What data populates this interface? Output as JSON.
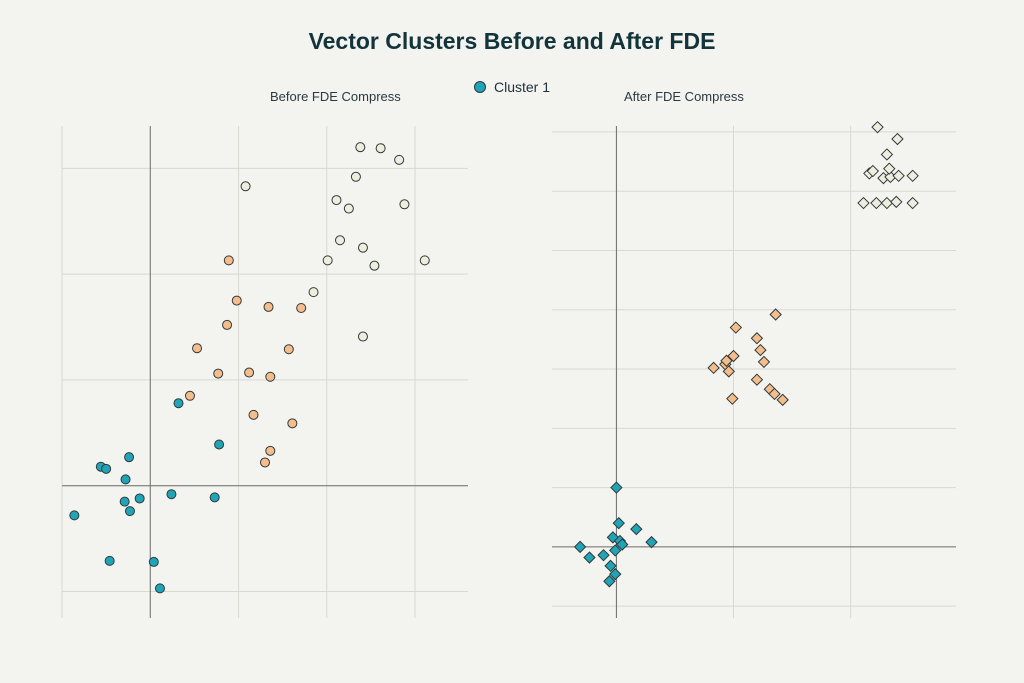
{
  "chart_data": {
    "title": "Vector Clusters Before and After FDE",
    "legend": {
      "entries": [
        "Cluster 1"
      ],
      "placement": "top-center"
    },
    "colors": {
      "cluster_1": "#20a4b7",
      "cluster_2": "#f5bd8c",
      "cluster_3": "#efeede",
      "marker_stroke": "#2f3a3a",
      "grid": "#d9d9d2",
      "zero_line": "#6a6a6a"
    },
    "panels": [
      {
        "title": "Before FDE Compress",
        "type": "scatter",
        "marker": "circle",
        "grid": true,
        "xlim": [
          -1.0,
          3.6
        ],
        "ylim": [
          -1.25,
          3.4
        ],
        "series": [
          {
            "color_key": "cluster_1",
            "points": [
              [
                -0.86,
                -0.28
              ],
              [
                -0.56,
                0.18
              ],
              [
                -0.5,
                0.16
              ],
              [
                -0.28,
                0.06
              ],
              [
                -0.24,
                0.27
              ],
              [
                -0.29,
                -0.15
              ],
              [
                -0.23,
                -0.24
              ],
              [
                -0.12,
                -0.12
              ],
              [
                0.24,
                -0.08
              ],
              [
                0.73,
                -0.11
              ],
              [
                0.32,
                0.78
              ],
              [
                0.78,
                0.39
              ],
              [
                -0.46,
                -0.71
              ],
              [
                0.04,
                -0.72
              ],
              [
                0.11,
                -0.97
              ]
            ]
          },
          {
            "color_key": "cluster_2",
            "points": [
              [
                0.45,
                0.85
              ],
              [
                0.53,
                1.3
              ],
              [
                0.77,
                1.06
              ],
              [
                0.87,
                1.52
              ],
              [
                0.89,
                2.13
              ],
              [
                0.98,
                1.75
              ],
              [
                1.12,
                1.07
              ],
              [
                1.17,
                0.67
              ],
              [
                1.34,
                1.69
              ],
              [
                1.36,
                1.03
              ],
              [
                1.3,
                0.22
              ],
              [
                1.36,
                0.33
              ],
              [
                1.57,
                1.29
              ],
              [
                1.61,
                0.59
              ],
              [
                1.71,
                1.68
              ]
            ]
          },
          {
            "color_key": "cluster_3",
            "points": [
              [
                1.85,
                1.83
              ],
              [
                2.01,
                2.13
              ],
              [
                2.11,
                2.7
              ],
              [
                2.15,
                2.32
              ],
              [
                2.25,
                2.62
              ],
              [
                2.33,
                2.92
              ],
              [
                2.38,
                3.2
              ],
              [
                2.41,
                2.25
              ],
              [
                2.41,
                1.41
              ],
              [
                2.54,
                2.08
              ],
              [
                2.61,
                3.19
              ],
              [
                2.82,
                3.08
              ],
              [
                2.88,
                2.66
              ],
              [
                3.11,
                2.13
              ],
              [
                1.08,
                2.83
              ]
            ]
          }
        ]
      },
      {
        "title": "After FDE Compress",
        "type": "scatter",
        "marker": "diamond",
        "grid": true,
        "xlim": [
          -0.55,
          2.9
        ],
        "ylim": [
          -0.6,
          3.55
        ],
        "series": [
          {
            "color_key": "cluster_1",
            "points": [
              [
                0.0,
                0.5
              ],
              [
                0.02,
                0.2
              ],
              [
                0.17,
                0.15
              ],
              [
                -0.03,
                0.08
              ],
              [
                0.03,
                0.05
              ],
              [
                -0.01,
                -0.03
              ],
              [
                0.05,
                0.02
              ],
              [
                0.3,
                0.04
              ],
              [
                -0.31,
                0.0
              ],
              [
                -0.23,
                -0.09
              ],
              [
                -0.11,
                -0.07
              ],
              [
                -0.05,
                -0.16
              ],
              [
                -0.01,
                -0.23
              ],
              [
                -0.06,
                -0.29
              ]
            ]
          },
          {
            "color_key": "cluster_2",
            "points": [
              [
                0.93,
                1.54
              ],
              [
                0.83,
                1.51
              ],
              [
                0.94,
                1.57
              ],
              [
                1.0,
                1.61
              ],
              [
                1.02,
                1.85
              ],
              [
                0.96,
                1.48
              ],
              [
                1.2,
                1.76
              ],
              [
                1.23,
                1.66
              ],
              [
                1.26,
                1.56
              ],
              [
                1.36,
                1.96
              ],
              [
                1.2,
                1.41
              ],
              [
                1.31,
                1.33
              ],
              [
                1.35,
                1.29
              ],
              [
                1.42,
                1.24
              ],
              [
                0.99,
                1.25
              ]
            ]
          },
          {
            "color_key": "cluster_3",
            "points": [
              [
                2.23,
                3.54
              ],
              [
                2.31,
                3.31
              ],
              [
                2.4,
                3.44
              ],
              [
                2.16,
                3.15
              ],
              [
                2.19,
                3.17
              ],
              [
                2.28,
                3.11
              ],
              [
                2.34,
                3.12
              ],
              [
                2.41,
                3.13
              ],
              [
                2.33,
                3.19
              ],
              [
                2.53,
                3.13
              ],
              [
                2.22,
                2.9
              ],
              [
                2.31,
                2.9
              ],
              [
                2.39,
                2.91
              ],
              [
                2.53,
                2.9
              ],
              [
                2.11,
                2.9
              ]
            ]
          }
        ]
      }
    ]
  }
}
